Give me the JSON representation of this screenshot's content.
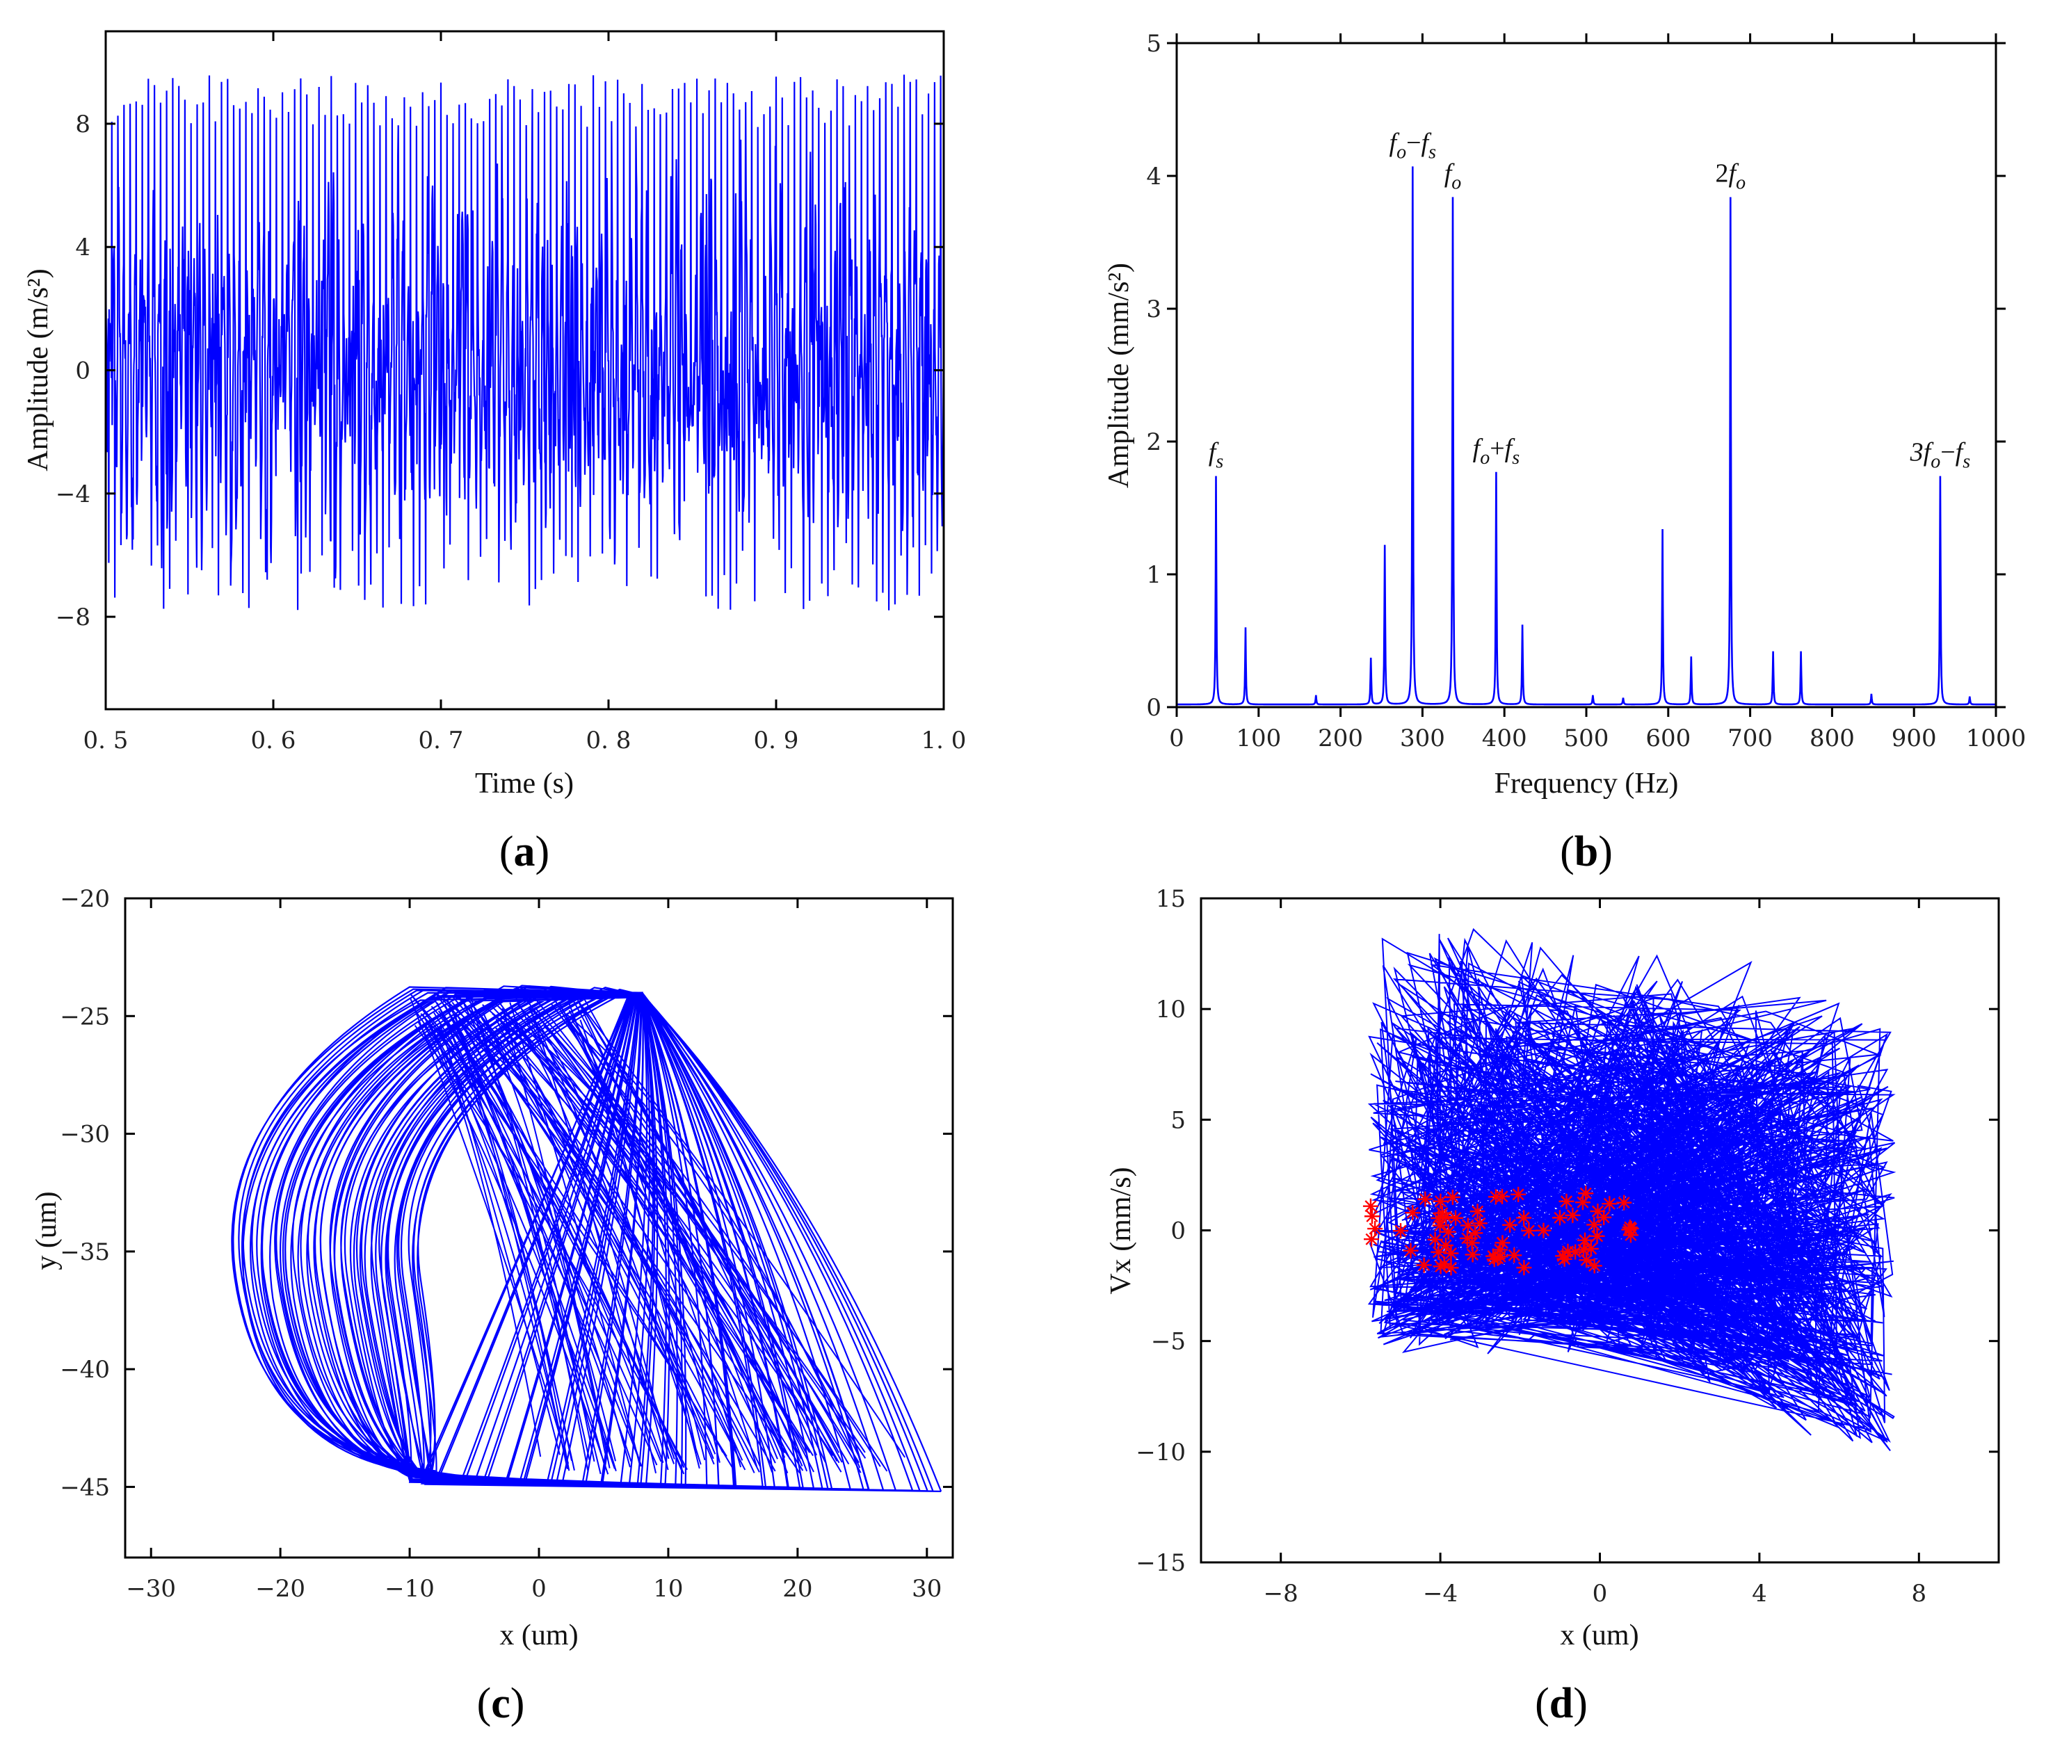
{
  "colors": {
    "signal": "#0000ff",
    "marker": "#ff0000",
    "axis": "#000000"
  },
  "chart_data": [
    {
      "panel": "a",
      "type": "line",
      "xlabel": "Time (s)",
      "ylabel": "Amplitude (m/s²)",
      "xlim": [
        0.5,
        1.0
      ],
      "ylim": [
        -11,
        11
      ],
      "xticks": [
        "0. 5",
        "0. 6",
        "0. 7",
        "0. 8",
        "0. 9",
        "1. 0"
      ],
      "xtick_values": [
        0.5,
        0.6,
        0.7,
        0.8,
        0.9,
        1.0
      ],
      "yticks": [
        "−8",
        "−4",
        "0",
        "4",
        "8"
      ],
      "ytick_values": [
        -8,
        -4,
        0,
        4,
        8
      ],
      "series": [
        {
          "name": "acceleration",
          "description": "oscillating signal between about −7.8 and 9.6 m/s²",
          "peak_max": 9.6,
          "peak_min": -7.8
        }
      ]
    },
    {
      "panel": "b",
      "type": "line",
      "xlabel": "Frequency (Hz)",
      "ylabel": "Amplitude (mm/s²)",
      "xlim": [
        0,
        1000
      ],
      "ylim": [
        0,
        5
      ],
      "xticks": [
        "0",
        "100",
        "200",
        "300",
        "400",
        "500",
        "600",
        "700",
        "800",
        "900",
        "1000"
      ],
      "xtick_values": [
        0,
        100,
        200,
        300,
        400,
        500,
        600,
        700,
        800,
        900,
        1000
      ],
      "yticks": [
        "0",
        "1",
        "2",
        "3",
        "4",
        "5"
      ],
      "ytick_values": [
        0,
        1,
        2,
        3,
        4,
        5
      ],
      "peaks": [
        {
          "x": 48,
          "y": 1.72
        },
        {
          "x": 84,
          "y": 0.58
        },
        {
          "x": 170,
          "y": 0.07
        },
        {
          "x": 237,
          "y": 0.35
        },
        {
          "x": 254,
          "y": 1.2
        },
        {
          "x": 288,
          "y": 4.05
        },
        {
          "x": 337,
          "y": 3.82
        },
        {
          "x": 390,
          "y": 1.75
        },
        {
          "x": 422,
          "y": 0.6
        },
        {
          "x": 508,
          "y": 0.07
        },
        {
          "x": 545,
          "y": 0.05
        },
        {
          "x": 593,
          "y": 1.32
        },
        {
          "x": 628,
          "y": 0.36
        },
        {
          "x": 676,
          "y": 3.82
        },
        {
          "x": 728,
          "y": 0.4
        },
        {
          "x": 762,
          "y": 0.4
        },
        {
          "x": 848,
          "y": 0.08
        },
        {
          "x": 932,
          "y": 1.72
        },
        {
          "x": 968,
          "y": 0.06
        }
      ],
      "annotations": [
        {
          "x": 48,
          "y": 1.72,
          "parts": [
            [
              "f",
              "it"
            ],
            [
              "s",
              "sub-it"
            ]
          ]
        },
        {
          "x": 288,
          "y": 4.05,
          "parts": [
            [
              "f",
              "it"
            ],
            [
              "o",
              "sub-it"
            ],
            [
              "−",
              ""
            ],
            [
              "f",
              "it"
            ],
            [
              "s",
              "sub-it"
            ]
          ]
        },
        {
          "x": 337,
          "y": 3.82,
          "parts": [
            [
              "f",
              "it"
            ],
            [
              "o",
              "sub-it"
            ]
          ]
        },
        {
          "x": 390,
          "y": 1.75,
          "parts": [
            [
              "f",
              "it"
            ],
            [
              "o",
              "sub-it"
            ],
            [
              "+",
              ""
            ],
            [
              "f",
              "it"
            ],
            [
              "s",
              "sub-it"
            ]
          ]
        },
        {
          "x": 676,
          "y": 3.82,
          "parts": [
            [
              "2",
              ""
            ],
            [
              "f",
              "it"
            ],
            [
              "o",
              "sub-it"
            ]
          ]
        },
        {
          "x": 932,
          "y": 1.72,
          "parts": [
            [
              "3",
              "it"
            ],
            [
              "f",
              "it"
            ],
            [
              "o",
              "sub-it"
            ],
            [
              "−",
              ""
            ],
            [
              "f",
              "it"
            ],
            [
              "s",
              "sub-it"
            ]
          ]
        }
      ]
    },
    {
      "panel": "c",
      "type": "line",
      "xlabel": "x (um)",
      "ylabel": "y (um)",
      "xlim": [
        -32,
        32
      ],
      "ylim": [
        -48,
        -20
      ],
      "xticks": [
        "−30",
        "−20",
        "−10",
        "0",
        "10",
        "20",
        "30"
      ],
      "xtick_values": [
        -30,
        -20,
        -10,
        0,
        10,
        20,
        30
      ],
      "yticks": [
        "−20",
        "−25",
        "−30",
        "−35",
        "−40",
        "−45"
      ],
      "ytick_values": [
        -20,
        -25,
        -30,
        -35,
        -40,
        -45
      ],
      "series": [
        {
          "name": "orbit",
          "description": "dense orbit spanning x ≈ −24 to 30 um, y ≈ −45 to −24 um",
          "x_range": [
            -24,
            30.5
          ],
          "y_range": [
            -44.8,
            -23.8
          ]
        }
      ]
    },
    {
      "panel": "d",
      "type": "scatter",
      "xlabel": "x (um)",
      "ylabel": "Vx (mm/s)",
      "xlim": [
        -10,
        10
      ],
      "ylim": [
        -15,
        15
      ],
      "xticks": [
        "−8",
        "−4",
        "0",
        "4",
        "8"
      ],
      "xtick_values": [
        -8,
        -4,
        0,
        4,
        8
      ],
      "yticks": [
        "15",
        "10",
        "5",
        "0",
        "−5",
        "−10",
        "−15"
      ],
      "ytick_values": [
        15,
        10,
        5,
        0,
        -5,
        -10,
        -15
      ],
      "series": [
        {
          "name": "phase trajectory",
          "color": "blue",
          "x_range": [
            -6.1,
            7.6
          ],
          "y_range": [
            -11,
            13.7
          ]
        },
        {
          "name": "Poincaré points",
          "color": "red",
          "marker": "asterisk",
          "x_range": [
            -6.1,
            0.9
          ],
          "y_range": [
            -2.2,
            2.1
          ]
        }
      ]
    }
  ],
  "panels": {
    "a": {
      "open": "(",
      "letter": "a",
      "close": ")"
    },
    "b": {
      "open": "(",
      "letter": "b",
      "close": ")"
    },
    "c": {
      "open": "(",
      "letter": "c",
      "close": ")"
    },
    "d": {
      "open": "(",
      "letter": "d",
      "close": ")"
    }
  }
}
